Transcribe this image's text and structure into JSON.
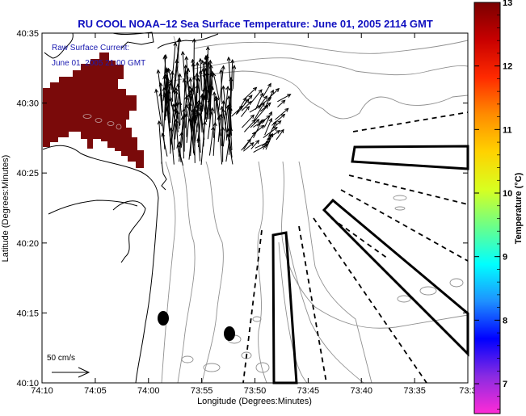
{
  "chart_data": {
    "type": "map",
    "title": "RU COOL  NOAA–12  Sea Surface Temperature:  June 01, 2005 2114 GMT",
    "xlabel": "Longitude (Degrees:Minutes)",
    "ylabel": "Latitude (Degrees:Minutes)",
    "x_range_minutes_west": [
      -74.1667,
      -73.5
    ],
    "x_ticks": [
      {
        "value": -74.1667,
        "label": "74:10"
      },
      {
        "value": -74.0833,
        "label": "74:05"
      },
      {
        "value": -74.0,
        "label": "74:00"
      },
      {
        "value": -73.9167,
        "label": "73:55"
      },
      {
        "value": -73.8333,
        "label": "73:50"
      },
      {
        "value": -73.75,
        "label": "73:45"
      },
      {
        "value": -73.6667,
        "label": "73:40"
      },
      {
        "value": -73.5833,
        "label": "73:35"
      },
      {
        "value": -73.5,
        "label": "73:3"
      }
    ],
    "y_range": [
      40.1667,
      40.5833
    ],
    "y_ticks": [
      {
        "value": 40.5833,
        "label": "40:35"
      },
      {
        "value": 40.5,
        "label": "40:30"
      },
      {
        "value": 40.4167,
        "label": "40:25"
      },
      {
        "value": 40.3333,
        "label": "40:20"
      },
      {
        "value": 40.25,
        "label": "40:15"
      },
      {
        "value": 40.1667,
        "label": "40:10"
      }
    ],
    "colorbar": {
      "label": "Temperature (°C)",
      "range": [
        6.53,
        13
      ],
      "ticks": [
        7,
        8,
        9,
        10,
        11,
        12,
        13
      ],
      "colors": [
        "#ff2bd6",
        "#8a2be2",
        "#0000ff",
        "#1e90ff",
        "#00ffff",
        "#6aff8a",
        "#d8ff20",
        "#ffd200",
        "#ff8c00",
        "#ff2a00",
        "#c80000",
        "#7a0000"
      ]
    },
    "sst_patch": {
      "temperature_c": 13,
      "color": "#7a0a0a",
      "location": "northwest (Raritan Bay / Staten Island area)"
    },
    "annotations": {
      "current_label_line1": "Raw Surface Current:",
      "current_label_line2": "June 01, 2005 21:00 GMT",
      "scale_vector_label": "50 cm/s"
    },
    "markers": [
      {
        "type": "filled-ellipse",
        "lon": -73.98,
        "lat": 40.245
      },
      {
        "type": "filled-ellipse",
        "lon": -73.87,
        "lat": 40.225
      }
    ],
    "survey_boxes": [
      {
        "name": "north-east-box",
        "style": "solid"
      },
      {
        "name": "southeast-diagonal-box",
        "style": "solid"
      },
      {
        "name": "south-central-box",
        "style": "solid"
      }
    ],
    "grid": false
  }
}
